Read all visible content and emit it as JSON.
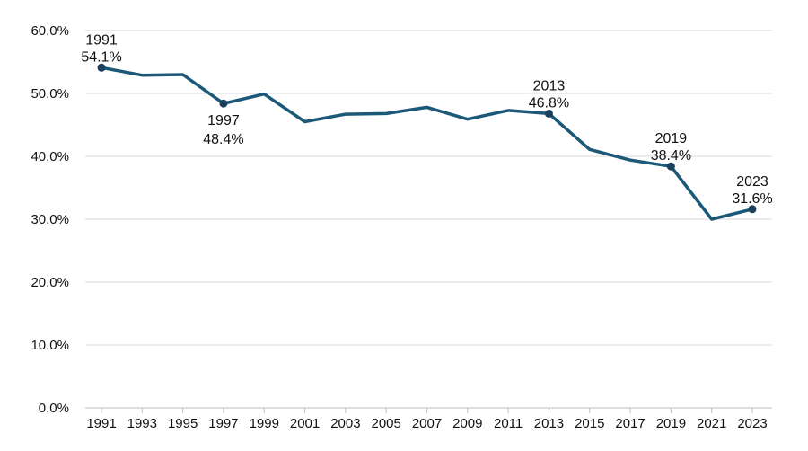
{
  "chart_data": {
    "type": "line",
    "title": "",
    "xlabel": "",
    "ylabel": "",
    "x": [
      1991,
      1993,
      1995,
      1997,
      1999,
      2001,
      2003,
      2005,
      2007,
      2009,
      2011,
      2013,
      2015,
      2017,
      2019,
      2021,
      2023
    ],
    "x_tick_labels": [
      "1991",
      "1993",
      "1995",
      "1997",
      "1999",
      "2001",
      "2003",
      "2005",
      "2007",
      "2009",
      "2011",
      "2013",
      "2015",
      "2017",
      "2019",
      "2021",
      "2023"
    ],
    "series": [
      {
        "values": [
          54.1,
          52.9,
          53.0,
          48.4,
          49.9,
          45.5,
          46.7,
          46.8,
          47.8,
          45.9,
          47.3,
          46.8,
          41.1,
          39.4,
          38.4,
          30.0,
          31.6
        ]
      }
    ],
    "ylim": [
      0,
      60
    ],
    "y_ticks": [
      0,
      10,
      20,
      30,
      40,
      50,
      60
    ],
    "y_tick_labels": [
      "0.0%",
      "10.0%",
      "20.0%",
      "30.0%",
      "40.0%",
      "50.0%",
      "60.0%"
    ],
    "grid": true,
    "annotations": [
      {
        "x": 1991,
        "y": 54.1,
        "year_label": "1991",
        "value_label": "54.1%",
        "placement": "above"
      },
      {
        "x": 1997,
        "y": 48.4,
        "year_label": "1997",
        "value_label": "48.4%",
        "placement": "below"
      },
      {
        "x": 2013,
        "y": 46.8,
        "year_label": "2013",
        "value_label": "46.8%",
        "placement": "above"
      },
      {
        "x": 2019,
        "y": 38.4,
        "year_label": "2019",
        "value_label": "38.4%",
        "placement": "above"
      },
      {
        "x": 2023,
        "y": 31.6,
        "year_label": "2023",
        "value_label": "31.6%",
        "placement": "above"
      }
    ],
    "colors": {
      "line": "#1c5878",
      "marker": "#1c3f5e",
      "grid": "#d9d9d9",
      "axis": "#bfbfbf",
      "text": "#111111"
    }
  }
}
